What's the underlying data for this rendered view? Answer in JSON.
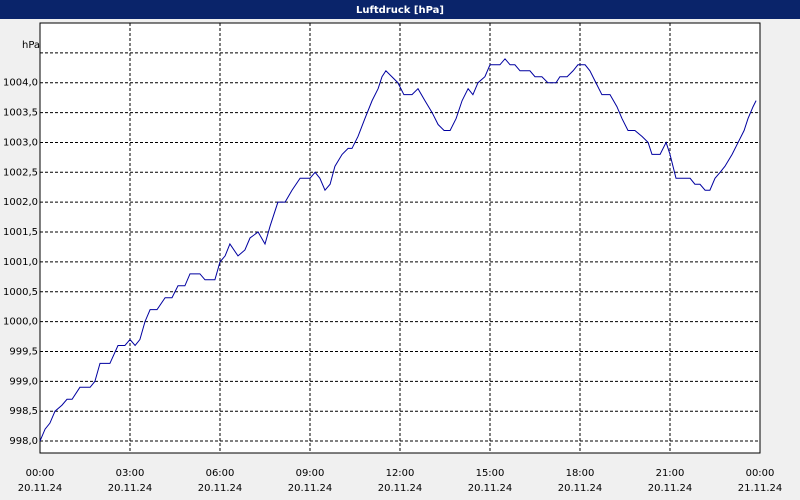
{
  "chart_data": {
    "type": "line",
    "title": "Luftdruck [hPa]",
    "y_label": "hPa",
    "x": [
      0,
      0.17,
      0.33,
      0.5,
      0.73,
      0.9,
      1.07,
      1.33,
      1.67,
      1.83,
      2,
      2.33,
      2.6,
      2.83,
      3,
      3.17,
      3.33,
      3.5,
      3.67,
      3.9,
      4.17,
      4.4,
      4.6,
      4.83,
      5,
      5.33,
      5.5,
      5.83,
      6,
      6.17,
      6.33,
      6.6,
      6.83,
      7,
      7.27,
      7.5,
      7.67,
      7.93,
      8.17,
      8.4,
      8.67,
      9,
      9.17,
      9.33,
      9.5,
      9.67,
      9.83,
      10.07,
      10.27,
      10.4,
      10.6,
      10.83,
      11.07,
      11.27,
      11.4,
      11.53,
      11.73,
      11.93,
      12.13,
      12.4,
      12.6,
      12.83,
      13.07,
      13.27,
      13.47,
      13.67,
      13.87,
      14.07,
      14.27,
      14.43,
      14.6,
      14.83,
      15,
      15.33,
      15.5,
      15.67,
      15.83,
      16,
      16.33,
      16.5,
      16.73,
      16.93,
      17.2,
      17.33,
      17.57,
      17.77,
      17.93,
      18.17,
      18.33,
      18.53,
      18.73,
      19,
      19.23,
      19.4,
      19.6,
      19.83,
      20.07,
      20.27,
      20.4,
      20.67,
      20.87,
      21,
      21.2,
      21.4,
      21.67,
      21.83,
      22,
      22.17,
      22.33,
      22.5,
      22.67,
      22.83,
      23.07,
      23.27,
      23.47,
      23.6,
      23.77,
      23.87
    ],
    "series": [
      {
        "color": "#0000a0",
        "values": [
          998.0,
          998.2,
          998.3,
          998.5,
          998.6,
          998.7,
          998.7,
          998.9,
          998.9,
          999.0,
          999.3,
          999.3,
          999.6,
          999.6,
          999.7,
          999.6,
          999.7,
          1000.0,
          1000.2,
          1000.2,
          1000.4,
          1000.4,
          1000.6,
          1000.6,
          1000.8,
          1000.8,
          1000.7,
          1000.7,
          1001.0,
          1001.1,
          1001.3,
          1001.1,
          1001.2,
          1001.4,
          1001.5,
          1001.3,
          1001.6,
          1002.0,
          1002.0,
          1002.2,
          1002.4,
          1002.4,
          1002.5,
          1002.4,
          1002.2,
          1002.3,
          1002.6,
          1002.8,
          1002.9,
          1002.9,
          1003.1,
          1003.4,
          1003.7,
          1003.9,
          1004.1,
          1004.2,
          1004.1,
          1004.0,
          1003.8,
          1003.8,
          1003.9,
          1003.7,
          1003.5,
          1003.3,
          1003.2,
          1003.2,
          1003.4,
          1003.7,
          1003.9,
          1003.8,
          1004.0,
          1004.1,
          1004.3,
          1004.3,
          1004.4,
          1004.3,
          1004.3,
          1004.2,
          1004.2,
          1004.1,
          1004.1,
          1004.0,
          1004.0,
          1004.1,
          1004.1,
          1004.2,
          1004.3,
          1004.3,
          1004.2,
          1004.0,
          1003.8,
          1003.8,
          1003.6,
          1003.4,
          1003.2,
          1003.2,
          1003.1,
          1003.0,
          1002.8,
          1002.8,
          1003.0,
          1002.8,
          1002.4,
          1002.4,
          1002.4,
          1002.3,
          1002.3,
          1002.2,
          1002.2,
          1002.4,
          1002.5,
          1002.6,
          1002.8,
          1003.0,
          1003.2,
          1003.4,
          1003.6,
          1003.7
        ]
      }
    ],
    "xlim": [
      0,
      24
    ],
    "xticks": [
      {
        "value": 0,
        "label": [
          "00:00",
          "20.11.24"
        ]
      },
      {
        "value": 3,
        "label": [
          "03:00",
          "20.11.24"
        ]
      },
      {
        "value": 6,
        "label": [
          "06:00",
          "20.11.24"
        ]
      },
      {
        "value": 9,
        "label": [
          "09:00",
          "20.11.24"
        ]
      },
      {
        "value": 12,
        "label": [
          "12:00",
          "20.11.24"
        ]
      },
      {
        "value": 15,
        "label": [
          "15:00",
          "20.11.24"
        ]
      },
      {
        "value": 18,
        "label": [
          "18:00",
          "20.11.24"
        ]
      },
      {
        "value": 21,
        "label": [
          "21:00",
          "20.11.24"
        ]
      },
      {
        "value": 24,
        "label": [
          "00:00",
          "21.11.24"
        ]
      }
    ],
    "ylim": [
      997.8,
      1005.0
    ],
    "yticks": [
      {
        "value": 998.0,
        "label": "998,0"
      },
      {
        "value": 998.5,
        "label": "998,5"
      },
      {
        "value": 999.0,
        "label": "999,0"
      },
      {
        "value": 999.5,
        "label": "999,5"
      },
      {
        "value": 1000.0,
        "label": "1000,0"
      },
      {
        "value": 1000.5,
        "label": "1000,5"
      },
      {
        "value": 1001.0,
        "label": "1001,0"
      },
      {
        "value": 1001.5,
        "label": "1001,5"
      },
      {
        "value": 1002.0,
        "label": "1002,0"
      },
      {
        "value": 1002.5,
        "label": "1002,5"
      },
      {
        "value": 1003.0,
        "label": "1003,0"
      },
      {
        "value": 1003.5,
        "label": "1003,5"
      },
      {
        "value": 1004.0,
        "label": "1004,0"
      },
      {
        "value": 1004.5,
        "label": null
      }
    ],
    "grid": true
  }
}
